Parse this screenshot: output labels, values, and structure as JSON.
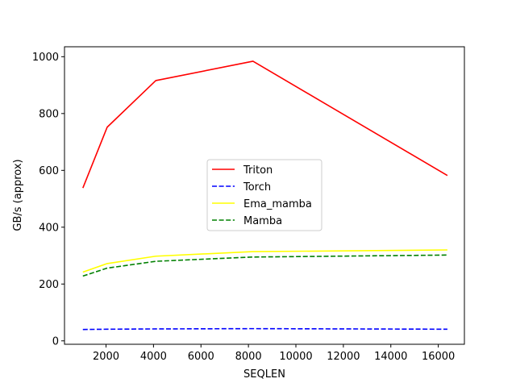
{
  "chart_data": {
    "type": "line",
    "title": "",
    "xlabel": "SEQLEN",
    "ylabel": "GB/s (approx)",
    "xlim": [
      250,
      17100
    ],
    "ylim": [
      -12,
      1035
    ],
    "x_ticks": [
      2000,
      4000,
      6000,
      8000,
      10000,
      12000,
      14000,
      16000
    ],
    "y_ticks": [
      0,
      200,
      400,
      600,
      800,
      1000
    ],
    "grid": false,
    "legend_position": "center",
    "series": [
      {
        "name": "Triton",
        "color": "#ff0000",
        "line_style": "solid",
        "x": [
          1024,
          2048,
          4096,
          8192,
          16384
        ],
        "values": [
          538,
          752,
          916,
          984,
          582
        ]
      },
      {
        "name": "Torch",
        "color": "#0000ff",
        "line_style": "dashed",
        "x": [
          1024,
          2048,
          4096,
          8192,
          16384
        ],
        "values": [
          40,
          41,
          42,
          43,
          41
        ]
      },
      {
        "name": "Ema_mamba",
        "color": "#ffff00",
        "line_style": "solid",
        "x": [
          1024,
          2048,
          4096,
          8192,
          16384
        ],
        "values": [
          242,
          272,
          298,
          314,
          320
        ]
      },
      {
        "name": "Mamba",
        "color": "#008000",
        "line_style": "dashed",
        "x": [
          1024,
          2048,
          4096,
          8192,
          16384
        ],
        "values": [
          228,
          256,
          280,
          295,
          302
        ]
      }
    ]
  }
}
